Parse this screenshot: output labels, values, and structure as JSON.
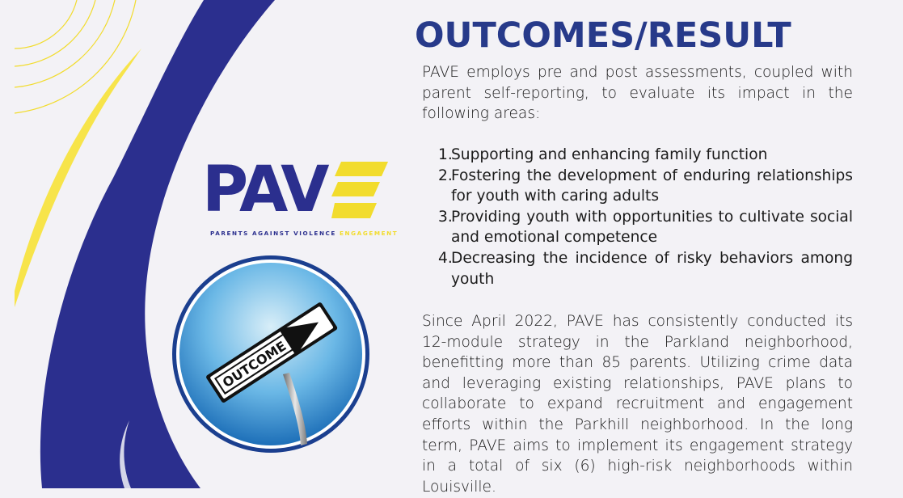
{
  "title": "OUTCOMES/RESULT",
  "intro": "PAVE employs pre and post assessments, coupled with parent self-reporting, to evaluate its impact in the following areas:",
  "areas": [
    {
      "num": "1.",
      "text": "Supporting and enhancing family function"
    },
    {
      "num": "2.",
      "text": "Fostering the development of enduring relationships for youth with caring adults"
    },
    {
      "num": "3.",
      "text": "Providing youth with opportunities to cultivate social and emotional competence"
    },
    {
      "num": "4.",
      "text": "Decreasing the incidence of risky behaviors among youth"
    }
  ],
  "outro": "Since April 2022, PAVE has consistently conducted its 12-module strategy in the Parkland neighborhood, benefitting more than 85 parents. Utilizing crime data and leveraging existing relationships, PAVE plans to collaborate to expand recruitment and engagement efforts within the Parkhill neighborhood. In the long term, PAVE aims to implement its engagement strategy in a total of six (6) high-risk neighborhoods within Louisville.",
  "logo": {
    "letters": "PAV",
    "tagline_main": "PARENTS AGAINST VIOLENCE ",
    "tagline_accent": "ENGAGEMENT"
  },
  "sign_text": "OUTCOME",
  "colors": {
    "navy": "#2b2f8e",
    "title": "#273a8a",
    "gold": "#f2dc2d",
    "background": "#f3f2f6",
    "sky_light": "#bfe3f5",
    "sky_dark": "#1d6fb8"
  },
  "icons": [
    "outcome-sign-icon",
    "arrow-icon"
  ]
}
